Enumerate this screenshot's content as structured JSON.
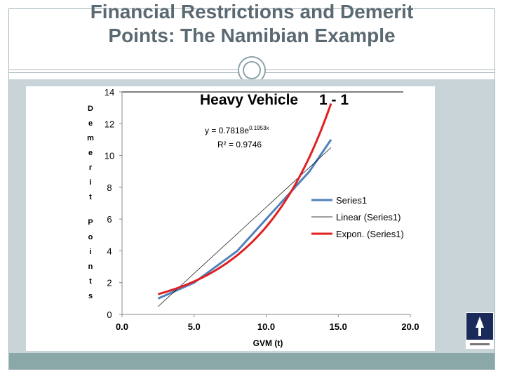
{
  "slide": {
    "title_line1": "Financial Restrictions and Demerit",
    "title_line2": "Points: The Namibian Example"
  },
  "chart_data": {
    "type": "line",
    "title_part1": "Heavy Vehicle",
    "title_part2": "1 - 1",
    "ylabel": "Demerit Points",
    "xlabel": "GVM (t)",
    "xlim": [
      0,
      20
    ],
    "ylim": [
      0,
      14
    ],
    "x_ticks": [
      "0.0",
      "5.0",
      "10.0",
      "15.0",
      "20.0"
    ],
    "y_ticks": [
      "0",
      "2",
      "4",
      "6",
      "8",
      "10",
      "12",
      "14"
    ],
    "equation": "y = 0.7818e",
    "equation_exp": "0.1953x",
    "r_squared": "R² = 0.9746",
    "grid": false,
    "legend_position": "right",
    "series": [
      {
        "name": "Series1",
        "color": "#4f81bd",
        "x": [
          2.5,
          5.0,
          8.0,
          10.0,
          11.5,
          12.0,
          13.0,
          14.5
        ],
        "y": [
          1.0,
          2.0,
          4.0,
          6.0,
          7.5,
          8.0,
          9.0,
          11.0
        ]
      },
      {
        "name": "Linear (Series1)",
        "color": "#000000",
        "type": "trendline-linear",
        "x": [
          2.5,
          14.5
        ],
        "y": [
          0.5,
          10.5
        ]
      },
      {
        "name": "Expon. (Series1)",
        "color": "#e02020",
        "type": "trendline-exponential",
        "a": 0.7818,
        "b": 0.1953,
        "x_range": [
          2.5,
          14.5
        ]
      }
    ]
  }
}
